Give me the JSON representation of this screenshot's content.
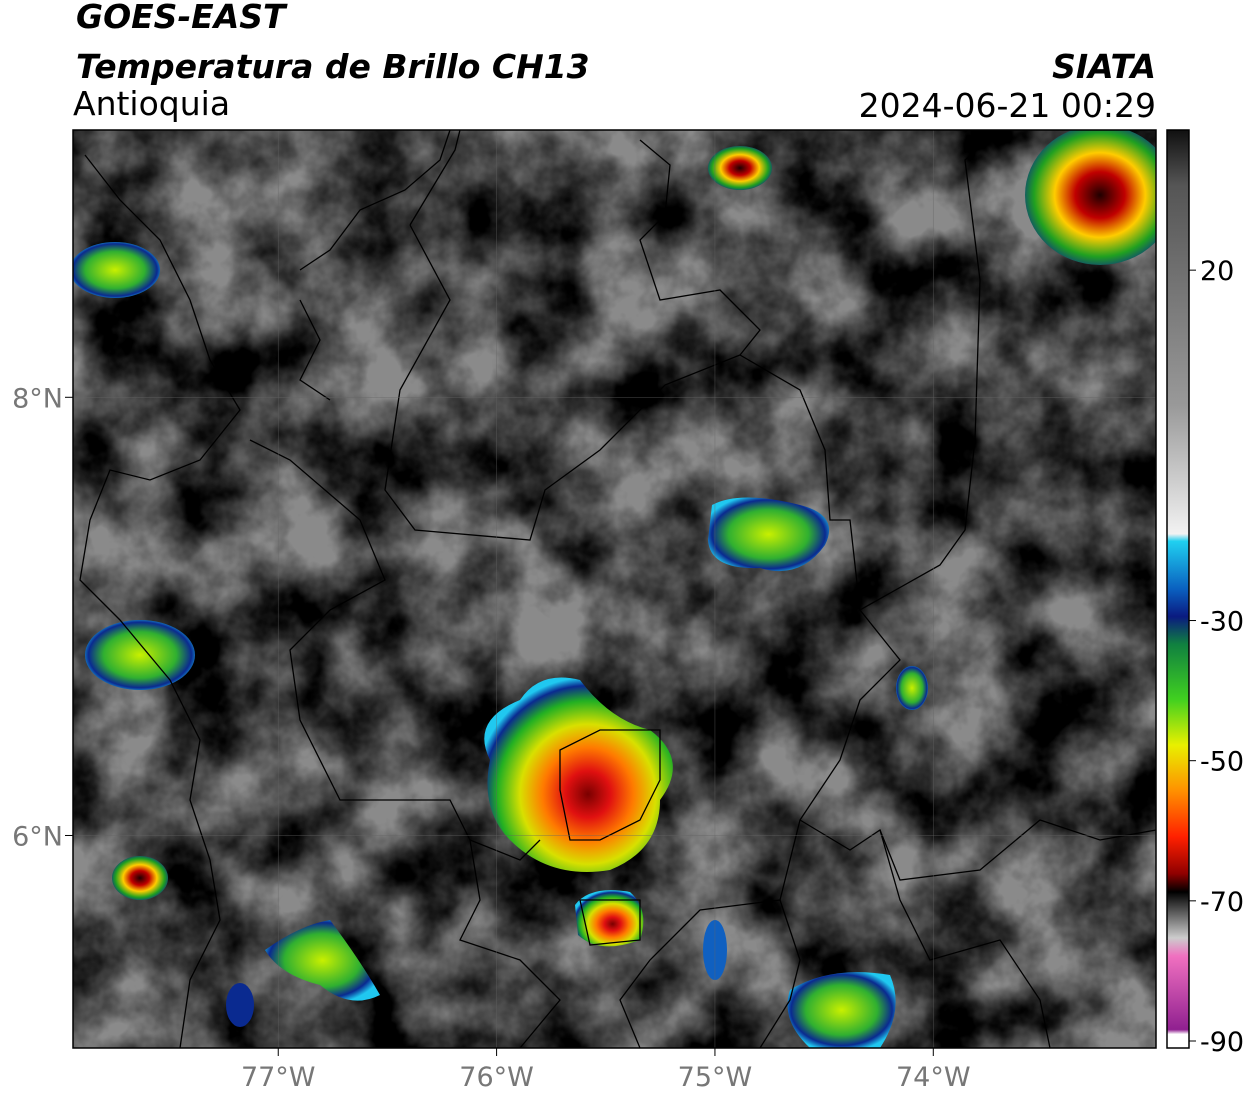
{
  "header": {
    "satellite": "GOES-EAST",
    "product": "Temperatura de Brillo CH13",
    "region": "Antioquia",
    "agency": "SIATA",
    "datetime": "2024-06-21 00:29"
  },
  "map": {
    "xlim": [
      -77.94,
      -72.98
    ],
    "ylim": [
      5.03,
      9.22
    ],
    "xticks": [
      {
        "value": -77,
        "label": "77°W"
      },
      {
        "value": -76,
        "label": "76°W"
      },
      {
        "value": -75,
        "label": "75°W"
      },
      {
        "value": -74,
        "label": "74°W"
      }
    ],
    "yticks": [
      {
        "value": 8,
        "label": "8°N"
      },
      {
        "value": 6,
        "label": "6°N"
      }
    ]
  },
  "colorbar": {
    "lim": [
      -91,
      40
    ],
    "ticks": [
      20,
      -30,
      -50,
      -70,
      -90
    ]
  }
}
